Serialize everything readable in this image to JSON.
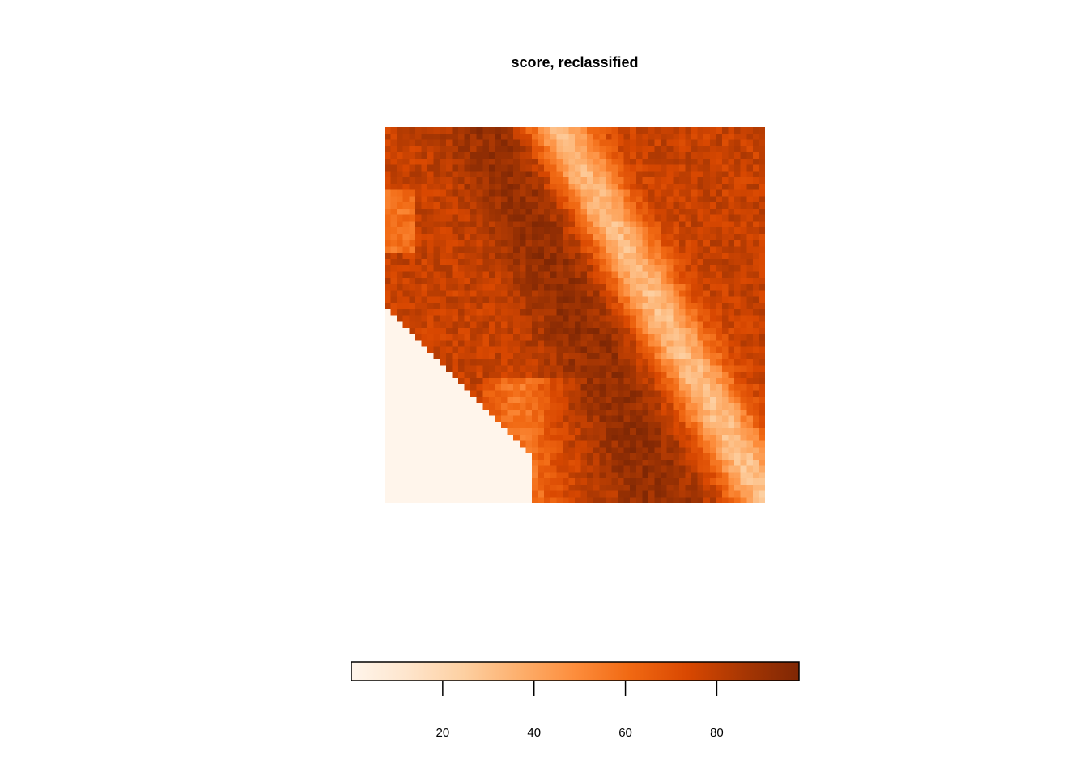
{
  "chart_data": {
    "type": "heatmap",
    "title": "score, reclassified",
    "color_scale": {
      "min": 0,
      "max": 98,
      "low_color": "#fff5eb",
      "mid_color": "#f16913",
      "high_color": "#7f2704",
      "ticks": [
        20,
        40,
        60,
        80
      ]
    },
    "raster_description": {
      "grid_columns": 62,
      "grid_rows": 60,
      "bright_ridge_value": 35,
      "dark_valley_value": 92,
      "coast_value": 0
    },
    "legend": {
      "position": "bottom"
    }
  }
}
